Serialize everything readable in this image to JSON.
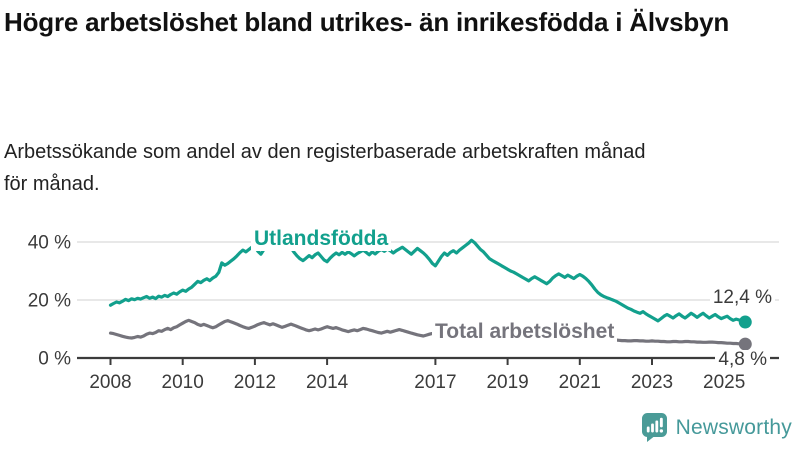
{
  "header": {
    "title": "Högre arbetslöshet bland utrikes- än inrikesfödda i Älvsbyn",
    "subtitle": "Arbetssökande som andel av den registerbaserade arbetskraften månad för månad."
  },
  "chart_data": {
    "type": "line",
    "title": "Högre arbetslöshet bland utrikes- än inrikesfödda i Älvsbyn",
    "subtitle": "Arbetssökande som andel av den registerbaserade arbetskraften månad för månad.",
    "x_start": 2008.0,
    "x_step_years": 0.0833,
    "x_end": 2025.58,
    "x_ticks": [
      2008,
      2010,
      2012,
      2014,
      2017,
      2019,
      2021,
      2023,
      2025
    ],
    "y_ticks": [
      {
        "value": 0,
        "label": "0 %"
      },
      {
        "value": 20,
        "label": "20 %"
      },
      {
        "value": 40,
        "label": "40 %"
      }
    ],
    "ylim": [
      0,
      44
    ],
    "grid": "horizontal",
    "grid_color": "#d9d9d9",
    "axis_color": "#3c3c3c",
    "legend_position": "inline-labels",
    "series": [
      {
        "name": "Utlandsfödda",
        "color": "#12a08d",
        "end_value": 12.4,
        "end_label": "12,4 %",
        "values": [
          18.2,
          18.8,
          19.3,
          19.0,
          19.6,
          20.2,
          19.8,
          20.4,
          20.1,
          20.6,
          20.3,
          20.8,
          21.2,
          20.6,
          21.0,
          20.5,
          21.3,
          21.0,
          21.6,
          21.2,
          21.9,
          22.4,
          22.0,
          22.8,
          23.4,
          23.0,
          23.8,
          24.4,
          25.4,
          26.4,
          26.0,
          26.8,
          27.3,
          26.7,
          27.6,
          28.2,
          29.5,
          32.8,
          32.0,
          32.6,
          33.4,
          34.2,
          35.2,
          36.3,
          37.2,
          36.6,
          37.4,
          38.2,
          38.4,
          36.8,
          35.8,
          37.4,
          38.6,
          39.2,
          39.7,
          40.2,
          39.6,
          38.8,
          39.3,
          38.6,
          38.0,
          36.5,
          35.2,
          34.2,
          33.6,
          34.4,
          35.3,
          34.6,
          35.6,
          36.2,
          35.0,
          33.8,
          33.2,
          34.4,
          35.4,
          36.2,
          35.6,
          36.4,
          35.8,
          36.6,
          36.0,
          35.2,
          36.0,
          36.6,
          37.2,
          36.4,
          35.6,
          36.6,
          35.9,
          36.8,
          37.4,
          36.8,
          37.6,
          37.0,
          36.2,
          37.0,
          37.6,
          38.2,
          37.4,
          36.6,
          35.8,
          36.8,
          37.8,
          37.0,
          36.2,
          35.2,
          34.0,
          32.6,
          31.8,
          33.4,
          35.0,
          36.2,
          35.4,
          36.4,
          37.0,
          36.2,
          37.2,
          38.0,
          38.8,
          39.6,
          40.6,
          39.8,
          38.6,
          37.4,
          36.6,
          35.4,
          34.2,
          33.6,
          33.0,
          32.4,
          31.8,
          31.2,
          30.6,
          30.0,
          29.6,
          29.0,
          28.4,
          27.8,
          27.2,
          26.6,
          27.4,
          28.0,
          27.4,
          26.8,
          26.2,
          25.6,
          26.4,
          27.6,
          28.4,
          29.0,
          28.4,
          27.8,
          28.6,
          28.0,
          27.4,
          28.2,
          28.8,
          28.2,
          27.4,
          26.4,
          25.2,
          23.8,
          22.6,
          21.8,
          21.2,
          20.8,
          20.4,
          20.0,
          19.6,
          19.0,
          18.4,
          17.8,
          17.2,
          16.8,
          16.2,
          15.8,
          15.4,
          16.0,
          15.2,
          14.6,
          14.0,
          13.4,
          12.8,
          13.6,
          14.4,
          15.0,
          14.4,
          13.8,
          14.6,
          15.2,
          14.4,
          13.8,
          14.6,
          15.4,
          14.8,
          14.0,
          14.8,
          15.4,
          14.6,
          13.8,
          14.4,
          15.0,
          14.2,
          13.6,
          14.0,
          14.4,
          13.6,
          13.0,
          13.4,
          13.1,
          12.8,
          12.4
        ]
      },
      {
        "name": "Total arbetslöshet",
        "color": "#75747c",
        "end_value": 4.8,
        "end_label": "4,8 %",
        "values": [
          8.6,
          8.4,
          8.1,
          7.8,
          7.5,
          7.2,
          7.0,
          6.9,
          7.1,
          7.4,
          7.2,
          7.6,
          8.2,
          8.6,
          8.4,
          8.8,
          9.4,
          9.2,
          9.8,
          10.2,
          9.8,
          10.4,
          10.8,
          11.4,
          12.0,
          12.6,
          13.0,
          12.6,
          12.2,
          11.6,
          11.2,
          11.6,
          11.2,
          10.8,
          10.4,
          10.8,
          11.4,
          12.0,
          12.6,
          12.9,
          12.5,
          12.1,
          11.7,
          11.2,
          10.8,
          10.4,
          10.2,
          10.6,
          11.0,
          11.5,
          11.9,
          12.2,
          11.8,
          11.4,
          11.8,
          11.4,
          11.0,
          10.6,
          10.9,
          11.3,
          11.7,
          11.3,
          10.9,
          10.5,
          10.1,
          9.7,
          9.4,
          9.7,
          10.0,
          9.7,
          10.0,
          10.4,
          10.8,
          10.5,
          10.2,
          10.5,
          10.1,
          9.7,
          9.4,
          9.1,
          9.4,
          9.7,
          9.4,
          9.8,
          10.2,
          10.0,
          9.7,
          9.4,
          9.1,
          8.8,
          8.6,
          8.9,
          9.2,
          8.9,
          9.2,
          9.5,
          9.8,
          9.5,
          9.2,
          8.9,
          8.6,
          8.3,
          8.0,
          7.8,
          7.6,
          7.9,
          8.2,
          8.5,
          8.8,
          8.5,
          8.2,
          8.0,
          7.8,
          7.6,
          7.8,
          8.0,
          7.8,
          7.6,
          7.4,
          7.6,
          7.8,
          7.6,
          7.4,
          7.2,
          7.0,
          6.8,
          6.6,
          6.8,
          7.0,
          6.8,
          6.6,
          6.8,
          7.0,
          6.8,
          6.6,
          6.5,
          6.4,
          6.3,
          6.2,
          6.4,
          6.6,
          6.4,
          6.3,
          6.5,
          6.7,
          6.9,
          7.1,
          7.3,
          7.1,
          6.9,
          6.8,
          6.9,
          7.0,
          6.8,
          6.6,
          6.7,
          6.8,
          6.6,
          6.5,
          6.4,
          6.3,
          6.2,
          6.1,
          6.1,
          6.0,
          6.0,
          6.1,
          6.1,
          6.2,
          6.1,
          6.0,
          6.0,
          5.9,
          5.9,
          6.0,
          6.0,
          5.9,
          5.9,
          5.8,
          5.8,
          5.9,
          5.8,
          5.8,
          5.7,
          5.7,
          5.6,
          5.6,
          5.7,
          5.7,
          5.6,
          5.6,
          5.7,
          5.7,
          5.6,
          5.6,
          5.5,
          5.5,
          5.4,
          5.4,
          5.5,
          5.5,
          5.4,
          5.3,
          5.3,
          5.2,
          5.1,
          5.1,
          5.0,
          5.0,
          4.9,
          4.9,
          4.8
        ]
      }
    ]
  },
  "branding": {
    "logo_text": "Newsworthy",
    "logo_color": "#45999a",
    "logo_icon": "newsworthy-speech-bubble-bar-chart-icon",
    "logo_icon_color": "#4a9b97"
  }
}
